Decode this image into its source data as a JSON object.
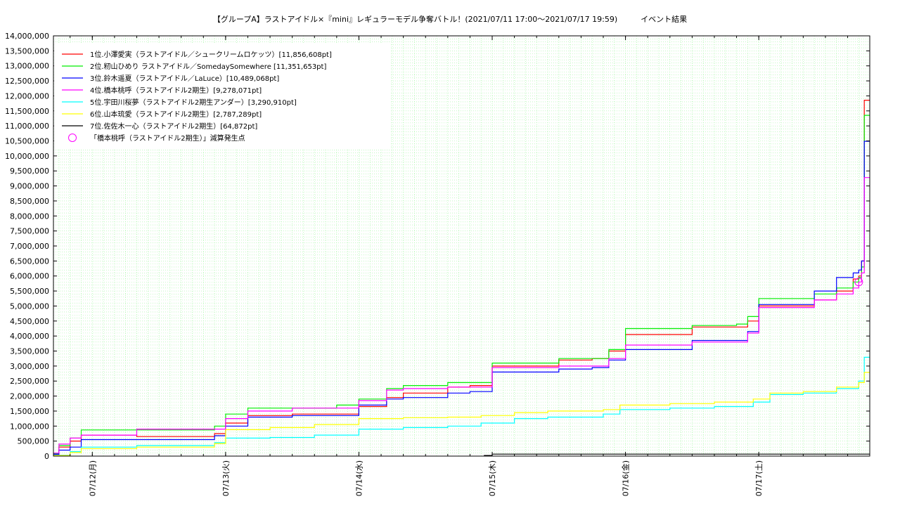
{
  "chart_data": {
    "type": "line",
    "title": "【グループA】ラストアイドル×『mini』レギュラーモデル争奪バトル！(2021/07/11 17:00〜2021/07/17 19:59)　　　イベント結果",
    "xlabel": "",
    "ylabel": "",
    "x_range": [
      "07/11 17:00",
      "07/17 19:59"
    ],
    "ylim": [
      0,
      14000000
    ],
    "yticks": [
      "0",
      "500,000",
      "1,000,000",
      "1,500,000",
      "2,000,000",
      "2,500,000",
      "3,000,000",
      "3,500,000",
      "4,000,000",
      "4,500,000",
      "5,000,000",
      "5,500,000",
      "6,000,000",
      "6,500,000",
      "7,000,000",
      "7,500,000",
      "8,000,000",
      "8,500,000",
      "9,000,000",
      "9,500,000",
      "10,000,000",
      "10,500,000",
      "11,000,000",
      "11,500,000",
      "12,000,000",
      "12,500,000",
      "13,000,000",
      "13,500,000",
      "14,000,000"
    ],
    "xticks": [
      {
        "label": "07/12(月)",
        "x": "07/12 00:00"
      },
      {
        "label": "07/13(火)",
        "x": "07/13 00:00"
      },
      {
        "label": "07/14(水)",
        "x": "07/14 00:00"
      },
      {
        "label": "07/15(木)",
        "x": "07/15 00:00"
      },
      {
        "label": "07/16(金)",
        "x": "07/16 00:00"
      },
      {
        "label": "07/17(土)",
        "x": "07/17 00:00"
      }
    ],
    "grid": true,
    "legend_position": "top-left",
    "series": [
      {
        "name": "1位.小澤愛実（ラストアイドル／シュークリームロケッツ）[11,856,608pt]",
        "color": "#ff0000",
        "x": [
          "07/11 17:00",
          "07/11 18:00",
          "07/11 20:00",
          "07/11 22:00",
          "07/12 02:00",
          "07/12 08:00",
          "07/12 22:00",
          "07/13 00:00",
          "07/13 04:00",
          "07/13 12:00",
          "07/13 20:00",
          "07/14 00:00",
          "07/14 05:00",
          "07/14 08:00",
          "07/14 16:00",
          "07/14 20:00",
          "07/15 00:00",
          "07/15 06:00",
          "07/15 12:00",
          "07/15 18:00",
          "07/15 21:00",
          "07/16 00:00",
          "07/16 06:00",
          "07/16 12:00",
          "07/16 20:00",
          "07/16 22:00",
          "07/17 00:00",
          "07/17 06:00",
          "07/17 10:00",
          "07/17 14:00",
          "07/17 17:00",
          "07/17 18:00",
          "07/17 18:30",
          "07/17 19:00",
          "07/17 19:59"
        ],
        "values": [
          50000,
          300000,
          500000,
          700000,
          700000,
          650000,
          750000,
          1100000,
          1350000,
          1400000,
          1400000,
          1650000,
          1950000,
          2100000,
          2300000,
          2350000,
          3000000,
          3000000,
          3200000,
          3250000,
          3500000,
          4050000,
          4050000,
          4300000,
          4300000,
          4500000,
          5000000,
          5000000,
          5200000,
          5500000,
          5900000,
          6000000,
          6500000,
          11856608,
          11856608
        ]
      },
      {
        "name": "2位.籾山ひめり ラストアイドル／SomedaySomewhere [11,351,653pt]",
        "color": "#00ee00",
        "x": [
          "07/11 17:00",
          "07/11 18:00",
          "07/11 20:00",
          "07/11 22:00",
          "07/12 02:00",
          "07/12 08:00",
          "07/12 22:00",
          "07/13 00:00",
          "07/13 04:00",
          "07/13 12:00",
          "07/13 20:00",
          "07/14 00:00",
          "07/14 05:00",
          "07/14 08:00",
          "07/14 16:00",
          "07/14 20:00",
          "07/15 00:00",
          "07/15 06:00",
          "07/15 12:00",
          "07/15 18:00",
          "07/15 21:00",
          "07/16 00:00",
          "07/16 06:00",
          "07/16 12:00",
          "07/16 20:00",
          "07/16 22:00",
          "07/17 00:00",
          "07/17 06:00",
          "07/17 10:00",
          "07/17 14:00",
          "07/17 17:00",
          "07/17 18:00",
          "07/17 18:30",
          "07/17 19:00",
          "07/17 19:59"
        ],
        "values": [
          80000,
          350000,
          600000,
          870000,
          870000,
          870000,
          1000000,
          1400000,
          1600000,
          1600000,
          1700000,
          1900000,
          2250000,
          2350000,
          2450000,
          2450000,
          3100000,
          3100000,
          3250000,
          3250000,
          3550000,
          4250000,
          4250000,
          4350000,
          4400000,
          4650000,
          5250000,
          5250000,
          5400000,
          5600000,
          5800000,
          5950000,
          6300000,
          11351653,
          11351653
        ]
      },
      {
        "name": "3位.鈴木遥夏（ラストアイドル／LaLuce）[10,489,068pt]",
        "color": "#0000ff",
        "x": [
          "07/11 17:00",
          "07/11 18:00",
          "07/11 20:00",
          "07/11 22:00",
          "07/12 02:00",
          "07/12 08:00",
          "07/12 22:00",
          "07/13 00:00",
          "07/13 04:00",
          "07/13 12:00",
          "07/13 20:00",
          "07/14 00:00",
          "07/14 05:00",
          "07/14 08:00",
          "07/14 16:00",
          "07/14 20:00",
          "07/15 00:00",
          "07/15 06:00",
          "07/15 12:00",
          "07/15 18:00",
          "07/15 21:00",
          "07/16 00:00",
          "07/16 06:00",
          "07/16 12:00",
          "07/16 20:00",
          "07/16 22:00",
          "07/17 00:00",
          "07/17 06:00",
          "07/17 10:00",
          "07/17 14:00",
          "07/17 17:00",
          "07/17 18:00",
          "07/17 18:30",
          "07/17 19:00",
          "07/17 19:59"
        ],
        "values": [
          60000,
          200000,
          300000,
          550000,
          550000,
          550000,
          680000,
          1000000,
          1300000,
          1350000,
          1350000,
          1700000,
          1900000,
          1950000,
          2100000,
          2150000,
          2800000,
          2800000,
          2900000,
          2950000,
          3200000,
          3550000,
          3550000,
          3850000,
          3850000,
          4150000,
          5050000,
          5050000,
          5500000,
          5950000,
          6100000,
          6200000,
          6500000,
          10489068,
          10489068
        ]
      },
      {
        "name": "4位.橋本桃呼（ラストアイドル2期生）[9,278,071pt]",
        "color": "#ff00ff",
        "x": [
          "07/11 17:00",
          "07/11 18:00",
          "07/11 20:00",
          "07/11 22:00",
          "07/12 02:00",
          "07/12 08:00",
          "07/12 22:00",
          "07/13 00:00",
          "07/13 04:00",
          "07/13 12:00",
          "07/13 20:00",
          "07/14 00:00",
          "07/14 05:00",
          "07/14 08:00",
          "07/14 16:00",
          "07/14 20:00",
          "07/15 00:00",
          "07/15 06:00",
          "07/15 12:00",
          "07/15 18:00",
          "07/15 21:00",
          "07/16 00:00",
          "07/16 06:00",
          "07/16 12:00",
          "07/16 20:00",
          "07/16 22:00",
          "07/17 00:00",
          "07/17 06:00",
          "07/17 10:00",
          "07/17 14:00",
          "07/17 17:00",
          "07/17 18:00",
          "07/17 18:30",
          "07/17 19:00",
          "07/17 19:59"
        ],
        "values": [
          100000,
          400000,
          600000,
          700000,
          700000,
          900000,
          900000,
          1250000,
          1500000,
          1600000,
          1600000,
          1850000,
          2200000,
          2250000,
          2300000,
          2300000,
          2950000,
          2950000,
          3000000,
          3000000,
          3250000,
          3700000,
          3700000,
          3800000,
          3800000,
          4100000,
          4950000,
          4950000,
          5200000,
          5400000,
          5600000,
          5800000,
          6100000,
          9278071,
          9278071
        ]
      },
      {
        "name": "5位.宇田川桜夢（ラストアイドル2期生アンダー）[3,290,910pt]",
        "color": "#00ffff",
        "x": [
          "07/11 17:00",
          "07/11 20:00",
          "07/11 22:00",
          "07/12 08:00",
          "07/12 22:00",
          "07/13 00:00",
          "07/13 08:00",
          "07/13 16:00",
          "07/14 00:00",
          "07/14 08:00",
          "07/14 16:00",
          "07/14 22:00",
          "07/15 04:00",
          "07/15 10:00",
          "07/15 20:00",
          "07/15 23:00",
          "07/16 08:00",
          "07/16 16:00",
          "07/16 23:00",
          "07/17 02:00",
          "07/17 08:00",
          "07/17 14:00",
          "07/17 18:00",
          "07/17 19:00",
          "07/17 19:59"
        ],
        "values": [
          30000,
          150000,
          300000,
          350000,
          450000,
          600000,
          620000,
          700000,
          900000,
          950000,
          1000000,
          1100000,
          1250000,
          1300000,
          1400000,
          1550000,
          1600000,
          1650000,
          1800000,
          2050000,
          2100000,
          2250000,
          2500000,
          3290910,
          3290910
        ]
      },
      {
        "name": "6位.山本琉愛（ラストアイドル2期生）[2,787,289pt]",
        "color": "#ffff00",
        "x": [
          "07/11 17:00",
          "07/11 20:00",
          "07/11 22:00",
          "07/12 08:00",
          "07/12 22:00",
          "07/13 00:00",
          "07/13 08:00",
          "07/13 16:00",
          "07/14 00:00",
          "07/14 08:00",
          "07/14 16:00",
          "07/14 22:00",
          "07/15 04:00",
          "07/15 10:00",
          "07/15 20:00",
          "07/15 23:00",
          "07/16 08:00",
          "07/16 16:00",
          "07/16 23:00",
          "07/17 02:00",
          "07/17 08:00",
          "07/17 14:00",
          "07/17 18:00",
          "07/17 19:00",
          "07/17 19:59"
        ],
        "values": [
          20000,
          120000,
          250000,
          300000,
          420000,
          880000,
          950000,
          1050000,
          1250000,
          1280000,
          1300000,
          1350000,
          1450000,
          1500000,
          1550000,
          1700000,
          1750000,
          1800000,
          1900000,
          2100000,
          2150000,
          2300000,
          2450000,
          2787289,
          2787289
        ]
      },
      {
        "name": "7位.佐佐木一心（ラストアイドル2期生）[64,872pt]",
        "color": "#000000",
        "x": [
          "07/14 22:30",
          "07/15 00:00",
          "07/16 00:00",
          "07/17 00:00",
          "07/17 19:59"
        ],
        "values": [
          20000,
          64872,
          64872,
          64872,
          64872
        ]
      }
    ],
    "markers": [
      {
        "name": "「橋本桃呼（ラストアイドル2期生）」減算発生点",
        "color": "#ff00ff",
        "x": "07/17 18:00",
        "y": 5800000
      }
    ]
  }
}
